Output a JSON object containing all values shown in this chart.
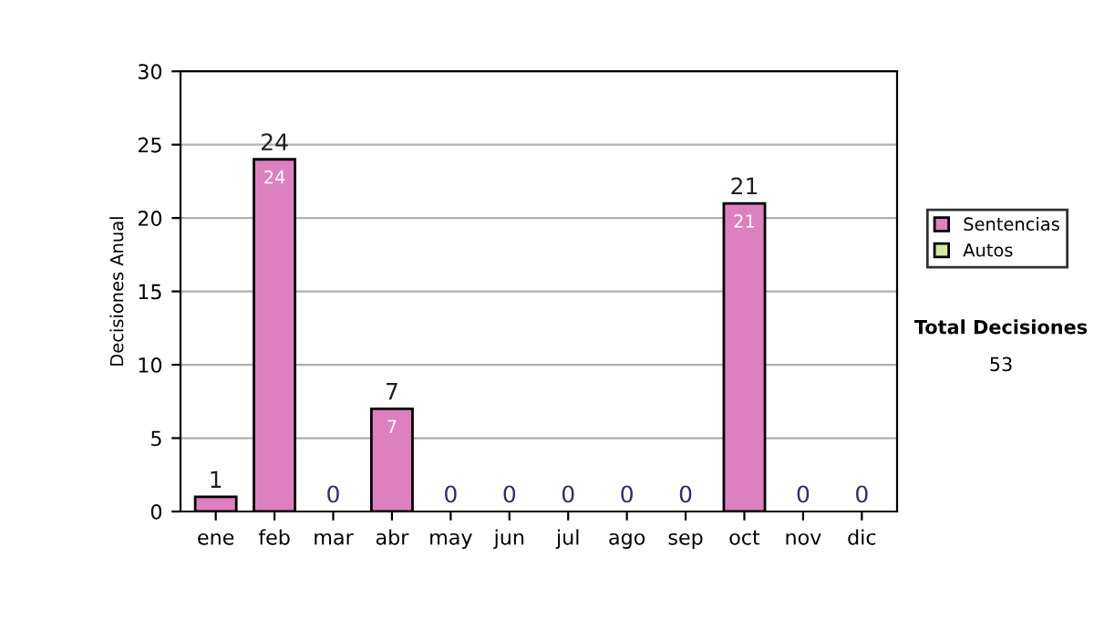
{
  "chart_data": {
    "type": "bar",
    "ylabel": "Decisiones Anual",
    "categories": [
      "ene",
      "feb",
      "mar",
      "abr",
      "may",
      "jun",
      "jul",
      "ago",
      "sep",
      "oct",
      "nov",
      "dic"
    ],
    "series": [
      {
        "name": "Sentencias",
        "color": "#dd80be",
        "values": [
          1,
          24,
          0,
          7,
          0,
          0,
          0,
          0,
          0,
          21,
          0,
          0
        ],
        "value_labels": [
          null,
          "24",
          null,
          "7",
          null,
          null,
          null,
          null,
          null,
          "21",
          null,
          null
        ]
      },
      {
        "name": "Autos",
        "color": "#d4e8a4",
        "values": [
          0,
          0,
          0,
          0,
          0,
          0,
          0,
          0,
          0,
          0,
          0,
          0
        ]
      }
    ],
    "stacked": true,
    "totals": [
      "1",
      "24",
      "0",
      "7",
      "0",
      "0",
      "0",
      "0",
      "0",
      "21",
      "0",
      "0"
    ],
    "ylim": [
      0,
      30
    ],
    "yticks": [
      0,
      5,
      10,
      15,
      20,
      25,
      30
    ],
    "grid": "y",
    "legend": "right",
    "annotations": [
      "Total Decisiones",
      "53"
    ]
  }
}
